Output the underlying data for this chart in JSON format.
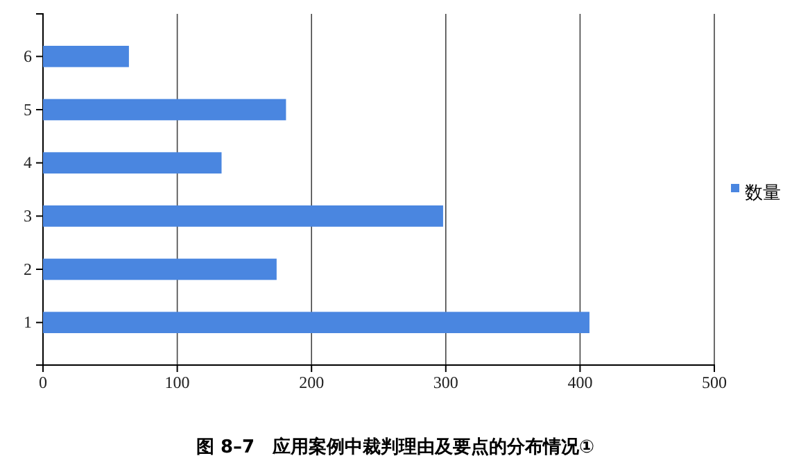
{
  "chart_data": {
    "type": "bar",
    "orientation": "horizontal",
    "title": "图 8–7　应用案例中裁判理由及要点的分布情况①",
    "categories": [
      "6",
      "5",
      "4",
      "3",
      "2",
      "1"
    ],
    "series": [
      {
        "name": "数量",
        "color": "#4a86e0",
        "values": [
          64,
          181,
          133,
          298,
          174,
          407
        ]
      }
    ],
    "xlim": [
      0,
      500
    ],
    "xticks": [
      0,
      100,
      200,
      300,
      400,
      500
    ],
    "grid": "x",
    "legend": "right"
  }
}
